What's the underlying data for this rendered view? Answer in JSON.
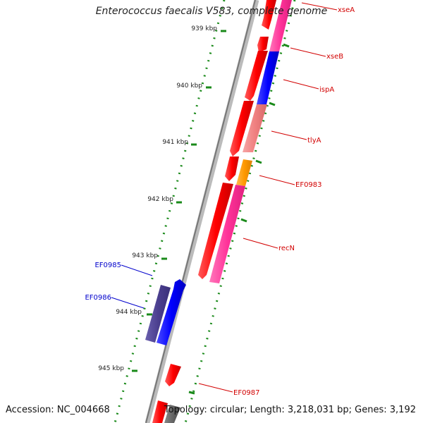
{
  "title": "Enterococcus faecalis V583, complete genome",
  "footer": {
    "accession": "Accession: NC_004668",
    "topology": "Topology: circular; Length: 3,218,031 bp; Genes: 3,192"
  },
  "ruler_ticks": [
    "939 kbp",
    "940 kbp",
    "941 kbp",
    "942 kbp",
    "943 kbp",
    "944 kbp",
    "945 kbp"
  ],
  "gene_labels": [
    {
      "name": "xseA",
      "color": "#d20000"
    },
    {
      "name": "xseB",
      "color": "#d20000"
    },
    {
      "name": "ispA",
      "color": "#d20000"
    },
    {
      "name": "tlyA",
      "color": "#d20000"
    },
    {
      "name": "EF0983",
      "color": "#d20000"
    },
    {
      "name": "recN",
      "color": "#d20000"
    },
    {
      "name": "EF0987",
      "color": "#d20000"
    },
    {
      "name": "EF0985",
      "color": "#0000cc"
    },
    {
      "name": "EF0986",
      "color": "#0000cc"
    }
  ],
  "colors": {
    "cds_forward": "#ff0000",
    "cds_reverse": "#0000ff",
    "pink": "#ff3399",
    "salmon": "#f08080",
    "orange": "#ff9900",
    "slate": "#4b3f8f",
    "grey": "#666666",
    "ruler": "#1a8a1a"
  }
}
